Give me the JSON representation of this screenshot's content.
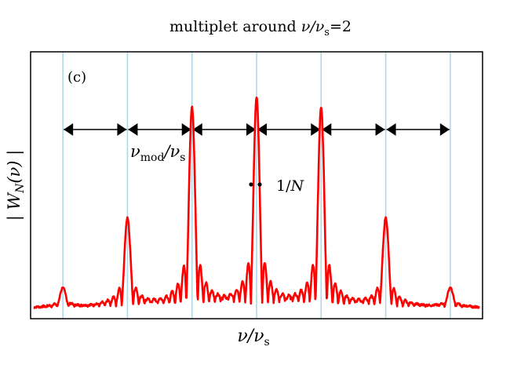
{
  "chart_data": {
    "type": "line",
    "title_prefix": "multiplet around ",
    "title_sym": "ν/ν",
    "title_sub": "s",
    "title_suffix": "=2",
    "panel_label": "(c)",
    "xlabel_sym": "ν/ν",
    "xlabel_sub": "s",
    "ylabel": "| W_N(ν) |",
    "ylabel_parts": {
      "open": "| W",
      "sub": "N",
      "mid": "(ν) |"
    },
    "grid": false,
    "vertical_lines": [
      -3,
      -2,
      -1,
      0,
      1,
      2,
      3
    ],
    "xlim": [
      -3.5,
      3.5
    ],
    "ylim": [
      0,
      1.08
    ],
    "arrows_between": [
      [
        -3,
        -2
      ],
      [
        -2,
        -1
      ],
      [
        -1,
        0
      ],
      [
        0,
        1
      ],
      [
        1,
        2
      ],
      [
        2,
        3
      ]
    ],
    "annotation_spacing": {
      "sym": "ν",
      "sub": "mod",
      "mid": "/ν",
      "sub2": "s"
    },
    "annotation_width": "1/N",
    "annotation_width_parts": {
      "num": "1/",
      "den": "N"
    },
    "series": [
      {
        "color": "#ff0000",
        "peaks": [
          {
            "x": -3,
            "amp": 0.085
          },
          {
            "x": -2,
            "amp": 0.39
          },
          {
            "x": -1,
            "amp": 0.88
          },
          {
            "x": 0,
            "amp": 0.92
          },
          {
            "x": 1,
            "amp": 0.88
          },
          {
            "x": 2,
            "amp": 0.39
          },
          {
            "x": 3,
            "amp": 0.085
          }
        ],
        "line_color": "#add8e6"
      }
    ]
  }
}
